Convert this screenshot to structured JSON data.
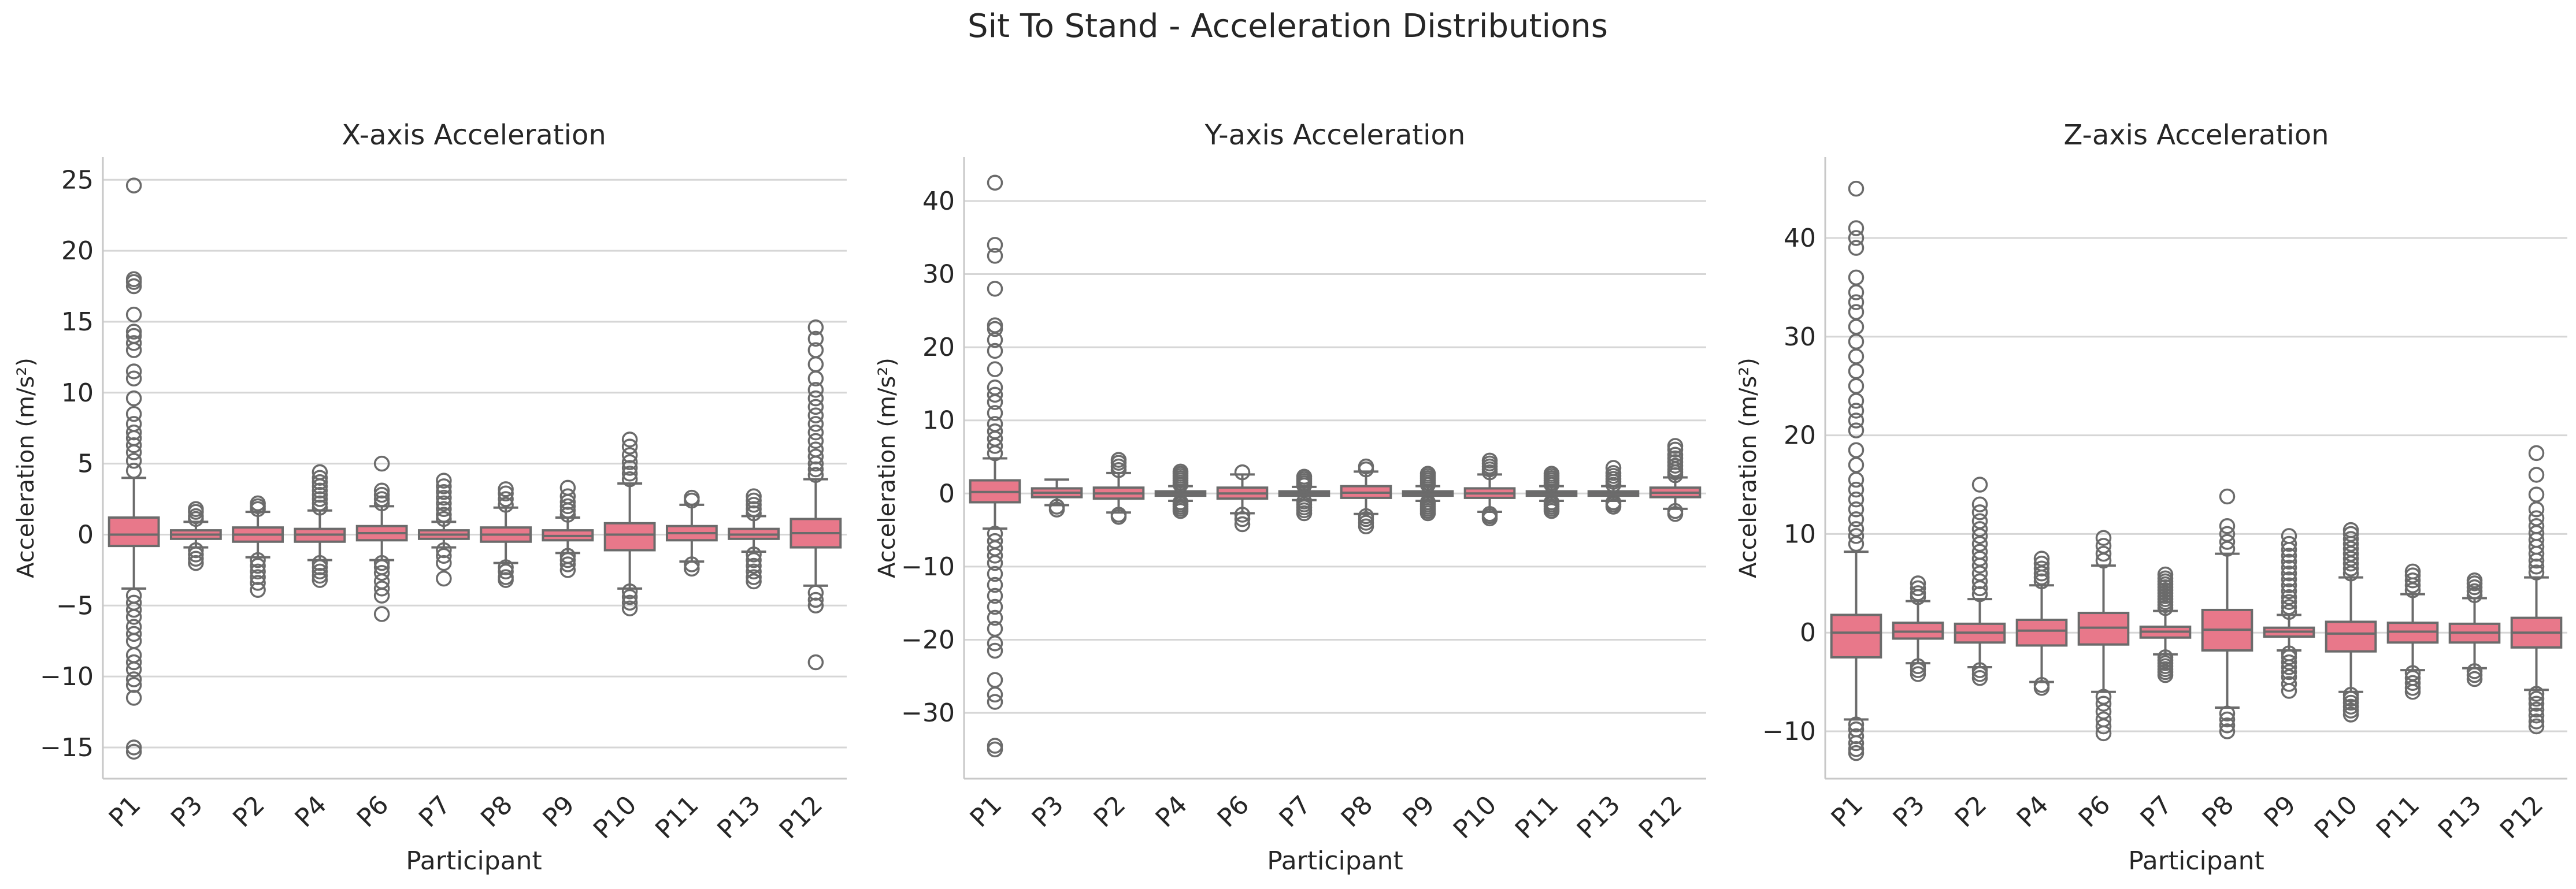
{
  "title": "Sit To Stand - Acceleration Distributions",
  "colors": {
    "box_fill": "#e8788a",
    "box_line": "#6b6b6b",
    "outlier": "#6b6b6b",
    "grid": "#d6d6d6"
  },
  "chart_data": [
    {
      "type": "box",
      "title": "X-axis Acceleration",
      "xlabel": "Participant",
      "ylabel": "Acceleration (m/s²)",
      "ylim": [
        -17.2,
        26.6
      ],
      "yticks": [
        -15,
        -10,
        -5,
        0,
        5,
        10,
        15,
        20,
        25
      ],
      "grid": "y",
      "categories": [
        "P1",
        "P3",
        "P2",
        "P4",
        "P6",
        "P7",
        "P8",
        "P9",
        "P10",
        "P11",
        "P13",
        "P12"
      ],
      "boxes": [
        {
          "q1": -0.8,
          "median": 0.0,
          "q3": 1.2,
          "whisker_low": -3.8,
          "whisker_high": 4.0,
          "outliers": [
            4.5,
            5.2,
            5.8,
            6.3,
            6.8,
            7.2,
            7.8,
            8.5,
            9.6,
            11.0,
            11.5,
            13.0,
            13.5,
            14.0,
            14.3,
            15.5,
            17.5,
            17.8,
            18.0,
            24.6,
            -4.3,
            -4.8,
            -5.3,
            -5.8,
            -6.5,
            -7.0,
            -7.5,
            -8.5,
            -9.0,
            -9.5,
            -10.2,
            -10.6,
            -11.5,
            -15.0,
            -15.3
          ]
        },
        {
          "q1": -0.3,
          "median": 0.0,
          "q3": 0.3,
          "whisker_low": -0.9,
          "whisker_high": 0.9,
          "outliers": [
            1.1,
            1.3,
            1.6,
            1.8,
            -1.1,
            -1.4,
            -1.7,
            -2.0
          ]
        },
        {
          "q1": -0.5,
          "median": 0.0,
          "q3": 0.5,
          "whisker_low": -1.6,
          "whisker_high": 1.6,
          "outliers": [
            1.8,
            2.0,
            2.2,
            -1.8,
            -2.2,
            -2.6,
            -3.0,
            -3.4,
            -3.9
          ]
        },
        {
          "q1": -0.5,
          "median": 0.0,
          "q3": 0.4,
          "whisker_low": -1.8,
          "whisker_high": 1.7,
          "outliers": [
            1.9,
            2.2,
            2.5,
            2.8,
            3.1,
            3.4,
            3.7,
            4.0,
            4.4,
            -2.0,
            -2.3,
            -2.6,
            -2.9,
            -3.2
          ]
        },
        {
          "q1": -0.4,
          "median": 0.1,
          "q3": 0.6,
          "whisker_low": -1.8,
          "whisker_high": 2.0,
          "outliers": [
            2.2,
            2.5,
            2.8,
            3.1,
            5.0,
            -2.0,
            -2.3,
            -2.7,
            -3.3,
            -3.8,
            -4.3,
            -5.6
          ]
        },
        {
          "q1": -0.3,
          "median": 0.0,
          "q3": 0.3,
          "whisker_low": -0.9,
          "whisker_high": 0.9,
          "outliers": [
            1.1,
            1.4,
            1.8,
            2.2,
            2.6,
            3.0,
            3.4,
            3.8,
            -1.1,
            -1.5,
            -2.0,
            -3.1
          ]
        },
        {
          "q1": -0.5,
          "median": 0.0,
          "q3": 0.5,
          "whisker_low": -2.0,
          "whisker_high": 1.9,
          "outliers": [
            2.1,
            2.5,
            2.9,
            3.2,
            -2.3,
            -2.6,
            -3.0,
            -3.2
          ]
        },
        {
          "q1": -0.4,
          "median": -0.1,
          "q3": 0.3,
          "whisker_low": -1.3,
          "whisker_high": 1.2,
          "outliers": [
            1.4,
            1.7,
            2.0,
            2.3,
            2.7,
            3.3,
            -1.5,
            -1.8,
            -2.1,
            -2.5
          ]
        },
        {
          "q1": -1.1,
          "median": 0.0,
          "q3": 0.8,
          "whisker_low": -3.8,
          "whisker_high": 3.6,
          "outliers": [
            3.9,
            4.3,
            4.7,
            5.1,
            5.6,
            6.2,
            6.7,
            -4.0,
            -4.4,
            -4.8,
            -5.2
          ]
        },
        {
          "q1": -0.4,
          "median": 0.1,
          "q3": 0.6,
          "whisker_low": -1.9,
          "whisker_high": 2.1,
          "outliers": [
            2.4,
            2.6,
            -2.1,
            -2.4
          ]
        },
        {
          "q1": -0.3,
          "median": 0.0,
          "q3": 0.4,
          "whisker_low": -1.2,
          "whisker_high": 1.3,
          "outliers": [
            1.5,
            1.8,
            2.1,
            2.4,
            2.7,
            -1.4,
            -1.8,
            -2.2,
            -2.6,
            -3.0,
            -3.3
          ]
        },
        {
          "q1": -0.9,
          "median": 0.1,
          "q3": 1.1,
          "whisker_low": -3.6,
          "whisker_high": 3.9,
          "outliers": [
            4.2,
            4.6,
            5.0,
            5.5,
            6.0,
            6.6,
            7.2,
            7.8,
            8.4,
            9.0,
            9.6,
            10.2,
            11.0,
            12.0,
            13.0,
            13.8,
            14.6,
            -4.1,
            -4.6,
            -5.0,
            -9.0
          ]
        }
      ]
    },
    {
      "type": "box",
      "title": "Y-axis Acceleration",
      "xlabel": "Participant",
      "ylabel": "Acceleration (m/s²)",
      "ylim": [
        -39.0,
        46.0
      ],
      "yticks": [
        -30,
        -20,
        -10,
        0,
        10,
        20,
        30,
        40
      ],
      "grid": "y",
      "categories": [
        "P1",
        "P3",
        "P2",
        "P4",
        "P6",
        "P7",
        "P8",
        "P9",
        "P10",
        "P11",
        "P13",
        "P12"
      ],
      "boxes": [
        {
          "q1": -1.2,
          "median": 0.2,
          "q3": 1.8,
          "whisker_low": -4.8,
          "whisker_high": 4.8,
          "outliers": [
            5.5,
            6.5,
            7.5,
            8.5,
            9.5,
            11.0,
            12.5,
            13.5,
            14.5,
            17.0,
            19.5,
            21.0,
            22.5,
            23.0,
            28.0,
            32.5,
            34.0,
            42.5,
            -5.5,
            -6.5,
            -7.5,
            -8.5,
            -9.5,
            -11.0,
            -12.5,
            -14.0,
            -15.5,
            -17.0,
            -18.5,
            -20.5,
            -21.5,
            -25.5,
            -27.5,
            -28.5,
            -34.5,
            -35.0
          ]
        },
        {
          "q1": -0.5,
          "median": 0.1,
          "q3": 0.7,
          "whisker_low": -1.6,
          "whisker_high": 1.9,
          "outliers": [
            -1.8,
            -2.2
          ]
        },
        {
          "q1": -0.7,
          "median": 0.0,
          "q3": 0.8,
          "whisker_low": -2.6,
          "whisker_high": 2.8,
          "outliers": [
            3.2,
            3.7,
            4.2,
            4.6,
            -2.9,
            -3.2
          ]
        },
        {
          "q1": -0.3,
          "median": 0.0,
          "q3": 0.3,
          "whisker_low": -1.0,
          "whisker_high": 1.0,
          "outliers": [
            1.2,
            1.5,
            1.8,
            2.1,
            2.4,
            2.7,
            3.0,
            -1.2,
            -1.5,
            -1.8,
            -2.1,
            -2.4
          ]
        },
        {
          "q1": -0.7,
          "median": 0.0,
          "q3": 0.8,
          "whisker_low": -2.7,
          "whisker_high": 2.6,
          "outliers": [
            2.9,
            -2.9,
            -3.5,
            -4.2
          ]
        },
        {
          "q1": -0.3,
          "median": 0.0,
          "q3": 0.3,
          "whisker_low": -0.9,
          "whisker_high": 0.9,
          "outliers": [
            1.1,
            1.4,
            1.7,
            2.0,
            2.3,
            -1.1,
            -1.5,
            -1.9,
            -2.3,
            -2.7
          ]
        },
        {
          "q1": -0.6,
          "median": 0.1,
          "q3": 1.0,
          "whisker_low": -2.8,
          "whisker_high": 3.0,
          "outliers": [
            3.3,
            3.7,
            -3.1,
            -3.5,
            -4.0,
            -4.5
          ]
        },
        {
          "q1": -0.3,
          "median": 0.0,
          "q3": 0.3,
          "whisker_low": -1.0,
          "whisker_high": 1.0,
          "outliers": [
            1.2,
            1.5,
            1.8,
            2.1,
            2.4,
            2.7,
            -1.2,
            -1.5,
            -1.8,
            -2.1,
            -2.4,
            -2.7
          ]
        },
        {
          "q1": -0.6,
          "median": 0.0,
          "q3": 0.7,
          "whisker_low": -2.5,
          "whisker_high": 2.6,
          "outliers": [
            2.9,
            3.3,
            3.7,
            4.1,
            4.5,
            -2.8,
            -3.1,
            -3.4
          ]
        },
        {
          "q1": -0.3,
          "median": 0.0,
          "q3": 0.3,
          "whisker_low": -1.0,
          "whisker_high": 1.0,
          "outliers": [
            1.2,
            1.5,
            1.8,
            2.1,
            2.4,
            2.7,
            -1.2,
            -1.5,
            -1.8,
            -2.1,
            -2.4
          ]
        },
        {
          "q1": -0.3,
          "median": 0.0,
          "q3": 0.3,
          "whisker_low": -1.0,
          "whisker_high": 1.0,
          "outliers": [
            1.2,
            1.6,
            2.0,
            2.4,
            2.8,
            3.5,
            -1.2,
            -1.5,
            -1.8
          ]
        },
        {
          "q1": -0.5,
          "median": 0.1,
          "q3": 0.8,
          "whisker_low": -2.1,
          "whisker_high": 2.2,
          "outliers": [
            2.5,
            2.9,
            3.3,
            3.8,
            4.3,
            4.8,
            5.3,
            6.0,
            6.5,
            -2.4,
            -2.8
          ]
        }
      ]
    },
    {
      "type": "box",
      "title": "Z-axis Acceleration",
      "xlabel": "Participant",
      "ylabel": "Acceleration (m/s²)",
      "ylim": [
        -14.8,
        48.2
      ],
      "yticks": [
        -10,
        0,
        10,
        20,
        30,
        40
      ],
      "grid": "y",
      "categories": [
        "P1",
        "P3",
        "P2",
        "P4",
        "P6",
        "P7",
        "P8",
        "P9",
        "P10",
        "P11",
        "P13",
        "P12"
      ],
      "boxes": [
        {
          "q1": -2.5,
          "median": 0.0,
          "q3": 1.8,
          "whisker_low": -8.8,
          "whisker_high": 8.2,
          "outliers": [
            9.0,
            9.8,
            10.5,
            11.5,
            12.5,
            13.5,
            14.5,
            15.5,
            17.0,
            18.5,
            20.5,
            21.5,
            22.5,
            23.5,
            25.0,
            26.5,
            28.0,
            29.5,
            31.0,
            32.5,
            33.5,
            34.5,
            36.0,
            39.0,
            40.0,
            41.0,
            45.0,
            -9.3,
            -9.8,
            -10.5,
            -11.2,
            -11.8,
            -12.2
          ]
        },
        {
          "q1": -0.6,
          "median": 0.1,
          "q3": 1.0,
          "whisker_low": -3.1,
          "whisker_high": 3.2,
          "outliers": [
            3.6,
            4.0,
            4.5,
            5.0,
            -3.4,
            -3.8,
            -4.2
          ]
        },
        {
          "q1": -1.0,
          "median": 0.0,
          "q3": 0.9,
          "whisker_low": -3.5,
          "whisker_high": 3.4,
          "outliers": [
            3.9,
            4.5,
            5.2,
            6.0,
            6.8,
            7.5,
            8.2,
            9.0,
            9.8,
            10.5,
            11.3,
            12.2,
            13.0,
            15.0,
            -3.8,
            -4.2,
            -4.6
          ]
        },
        {
          "q1": -1.3,
          "median": 0.2,
          "q3": 1.3,
          "whisker_low": -5.0,
          "whisker_high": 4.8,
          "outliers": [
            5.2,
            5.6,
            6.0,
            6.5,
            7.0,
            7.5,
            -5.3,
            -5.6
          ]
        },
        {
          "q1": -1.2,
          "median": 0.5,
          "q3": 2.0,
          "whisker_low": -6.0,
          "whisker_high": 6.8,
          "outliers": [
            7.3,
            8.0,
            8.8,
            9.6,
            -6.5,
            -7.2,
            -8.0,
            -8.8,
            -9.5,
            -10.2
          ]
        },
        {
          "q1": -0.5,
          "median": 0.1,
          "q3": 0.6,
          "whisker_low": -2.2,
          "whisker_high": 2.2,
          "outliers": [
            2.5,
            2.8,
            3.1,
            3.4,
            3.7,
            4.0,
            4.3,
            4.6,
            4.9,
            5.2,
            5.5,
            5.9,
            -2.5,
            -2.8,
            -3.1,
            -3.4,
            -3.7,
            -4.0,
            -4.3
          ]
        },
        {
          "q1": -1.8,
          "median": 0.3,
          "q3": 2.3,
          "whisker_low": -7.6,
          "whisker_high": 8.0,
          "outliers": [
            8.5,
            9.2,
            10.0,
            10.8,
            13.8,
            -8.2,
            -8.8,
            -9.4,
            -10.0
          ]
        },
        {
          "q1": -0.4,
          "median": 0.1,
          "q3": 0.5,
          "whisker_low": -1.8,
          "whisker_high": 1.8,
          "outliers": [
            2.1,
            2.6,
            3.1,
            3.6,
            4.2,
            4.8,
            5.4,
            6.0,
            6.6,
            7.2,
            7.8,
            8.4,
            9.0,
            9.8,
            -2.1,
            -2.5,
            -3.0,
            -3.5,
            -4.0,
            -4.5,
            -5.2,
            -5.9
          ]
        },
        {
          "q1": -1.9,
          "median": -0.1,
          "q3": 1.1,
          "whisker_low": -6.0,
          "whisker_high": 5.6,
          "outliers": [
            6.0,
            6.5,
            7.0,
            7.5,
            8.0,
            8.5,
            9.0,
            9.5,
            10.0,
            10.4,
            -6.3,
            -6.7,
            -7.1,
            -7.5,
            -7.9,
            -8.3
          ]
        },
        {
          "q1": -1.0,
          "median": 0.1,
          "q3": 1.0,
          "whisker_low": -3.8,
          "whisker_high": 3.9,
          "outliers": [
            4.3,
            4.8,
            5.3,
            5.8,
            6.2,
            -4.1,
            -4.6,
            -5.1,
            -5.6,
            -6.0
          ]
        },
        {
          "q1": -1.0,
          "median": 0.0,
          "q3": 0.9,
          "whisker_low": -3.6,
          "whisker_high": 3.5,
          "outliers": [
            3.8,
            4.2,
            4.6,
            5.0,
            5.3,
            -3.9,
            -4.3,
            -4.7
          ]
        },
        {
          "q1": -1.5,
          "median": 0.0,
          "q3": 1.5,
          "whisker_low": -5.8,
          "whisker_high": 5.6,
          "outliers": [
            6.1,
            6.7,
            7.3,
            8.0,
            8.7,
            9.4,
            10.1,
            10.8,
            11.6,
            12.5,
            14.0,
            16.0,
            18.2,
            -6.2,
            -6.7,
            -7.2,
            -7.8,
            -8.4,
            -9.0,
            -9.5
          ]
        }
      ]
    }
  ]
}
